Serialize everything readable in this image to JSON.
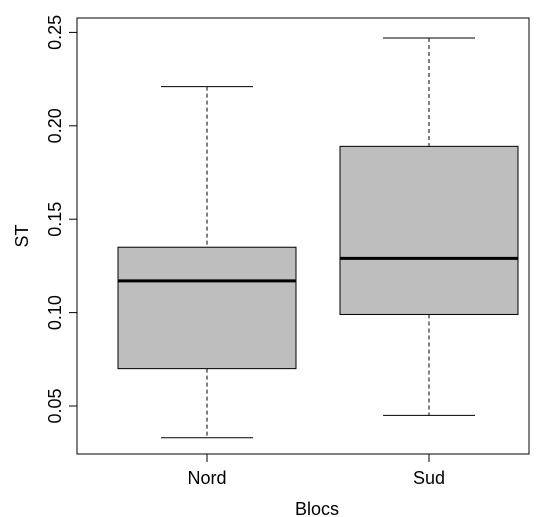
{
  "chart_data": {
    "type": "box",
    "title": "",
    "xlabel": "Blocs",
    "ylabel": "ST",
    "ylim": [
      0.022,
      0.255
    ],
    "yticks": [
      0.05,
      0.1,
      0.15,
      0.2,
      0.25
    ],
    "ytick_labels": [
      "0.05",
      "0.10",
      "0.15",
      "0.20",
      "0.25"
    ],
    "categories": [
      "Nord",
      "Sud"
    ],
    "box_fill": "#bebebe",
    "boxes": [
      {
        "category": "Nord",
        "whisker_low": 0.033,
        "q1": 0.07,
        "median": 0.117,
        "q3": 0.135,
        "whisker_high": 0.221
      },
      {
        "category": "Sud",
        "whisker_low": 0.045,
        "q1": 0.099,
        "median": 0.129,
        "q3": 0.189,
        "whisker_high": 0.247
      }
    ],
    "grid": false,
    "legend": "none"
  }
}
